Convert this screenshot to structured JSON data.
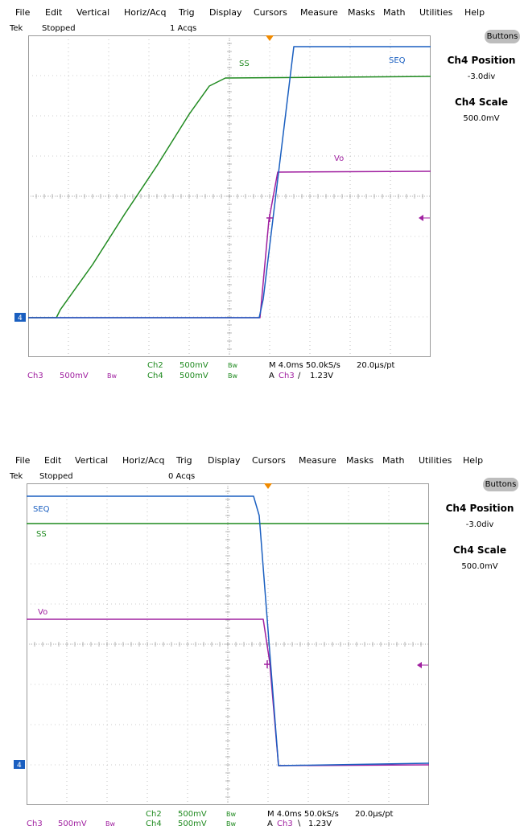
{
  "menu": [
    "File",
    "Edit",
    "Vertical",
    "Horiz/Acq",
    "Trig",
    "Display",
    "Cursors",
    "Measure",
    "Masks",
    "Math",
    "Utilities",
    "Help"
  ],
  "colors": {
    "ch1": "#1a5fc0",
    "ch2": "#1f8a1f",
    "ch3": "#a020a0",
    "grid": "#9a9a9a",
    "button": "#bdbdbd"
  },
  "side": {
    "buttons_label": "Buttons",
    "pos_title": "Ch4 Position",
    "pos_value": "-3.0div",
    "scale_title": "Ch4 Scale",
    "scale_value": "500.0mV"
  },
  "top": {
    "status": {
      "brand": "Tek",
      "state": "Stopped",
      "acqs": "1 Acqs"
    },
    "labels": {
      "seq": "SEQ",
      "ss": "SS",
      "vo": "Vo"
    },
    "readout": {
      "ch2_name": "Ch2",
      "ch2_scale": "500mV",
      "ch2_bw": "Bw",
      "ch4_name": "Ch4",
      "ch4_scale": "500mV",
      "ch4_bw": "Bw",
      "ch3_name": "Ch3",
      "ch3_scale": "500mV",
      "ch3_bw": "Bw",
      "timebase": "M 4.0ms 50.0kS/s",
      "sample_interval": "20.0µs/pt",
      "trig_mode": "A",
      "trig_ch": "Ch3",
      "trig_slope": "∕",
      "trig_level": "1.23V"
    }
  },
  "bottom": {
    "status": {
      "brand": "Tek",
      "state": "Stopped",
      "acqs": "0 Acqs"
    },
    "labels": {
      "seq": "SEQ",
      "ss": "SS",
      "vo": "Vo"
    },
    "readout": {
      "ch2_name": "Ch2",
      "ch2_scale": "500mV",
      "ch2_bw": "Bw",
      "ch4_name": "Ch4",
      "ch4_scale": "500mV",
      "ch4_bw": "Bw",
      "ch3_name": "Ch3",
      "ch3_scale": "500mV",
      "ch3_bw": "Bw",
      "timebase": "M 4.0ms 50.0kS/s",
      "sample_interval": "20.0µs/pt",
      "trig_mode": "A",
      "trig_ch": "Ch3",
      "trig_slope": "∖",
      "trig_level": "1.23V"
    }
  }
}
